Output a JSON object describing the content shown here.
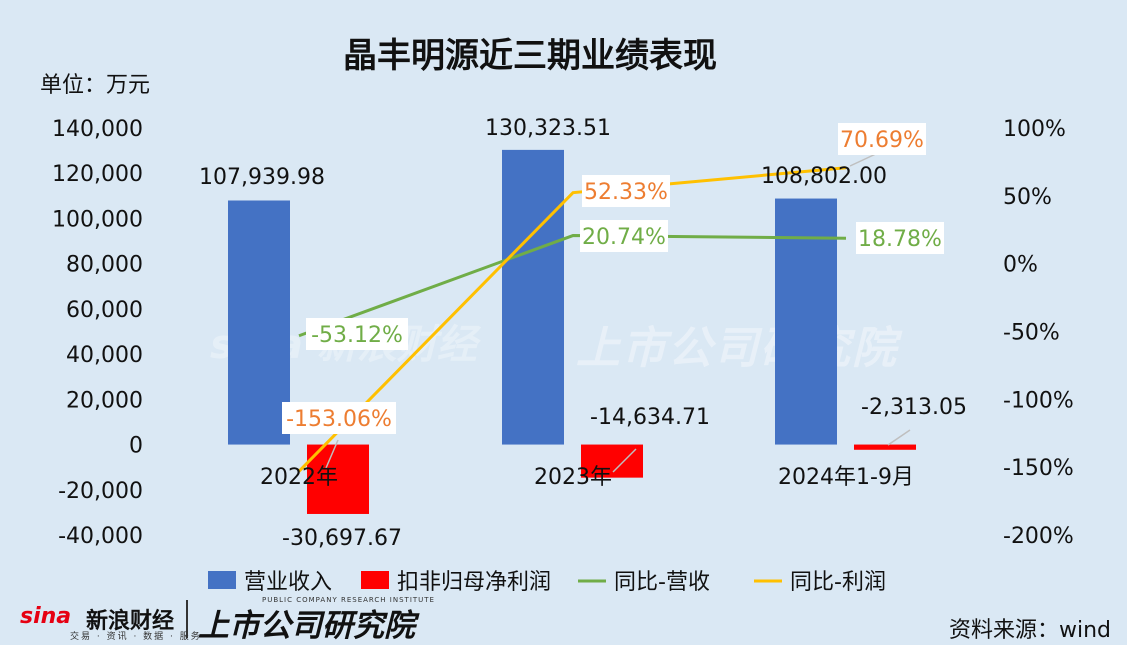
{
  "title": "晶丰明源近三期业绩表现",
  "unit": "单位：万元",
  "source": "资料来源：wind",
  "brand": {
    "sina": "sina",
    "sina_cn": "新浪财经",
    "sina_sub": "交易 · 资讯 · 数据 · 服务",
    "publication": "上市公司研究院",
    "publication_en": "PUBLIC COMPANY RESEARCH INSTITUTE"
  },
  "colors": {
    "revenue": "#4472c4",
    "profit": "#ff0000",
    "revenue_yoy": "#70ad47",
    "profit_yoy": "#ffc000",
    "profit_yoy_label": "#ed7d31"
  },
  "chart_data": {
    "type": "bar",
    "title": "晶丰明源近三期业绩表现",
    "ylabel": "单位：万元",
    "categories": [
      "2022年",
      "2023年",
      "2024年1-9月"
    ],
    "ylim": [
      -40000,
      140000
    ],
    "y_ticks": [
      "140,000",
      "120,000",
      "100,000",
      "80,000",
      "60,000",
      "40,000",
      "20,000",
      "0",
      "-20,000",
      "-40,000"
    ],
    "y2lim": [
      -200,
      100
    ],
    "y2_ticks": [
      "100%",
      "50%",
      "0%",
      "-50%",
      "-100%",
      "-150%",
      "-200%"
    ],
    "series": [
      {
        "name": "营业收入",
        "type": "bar",
        "axis": "left",
        "values": [
          107939.98,
          130323.51,
          108802.0
        ],
        "labels": [
          "107,939.98",
          "130,323.51",
          "108,802.00"
        ]
      },
      {
        "name": "扣非归母净利润",
        "type": "bar",
        "axis": "left",
        "values": [
          -30697.67,
          -14634.71,
          -2313.05
        ],
        "labels": [
          "-30,697.67",
          "-14,634.71",
          "-2,313.05"
        ]
      },
      {
        "name": "同比-营收",
        "type": "line",
        "axis": "right",
        "values": [
          -53.12,
          20.74,
          18.78
        ],
        "labels": [
          "-53.12%",
          "20.74%",
          "18.78%"
        ]
      },
      {
        "name": "同比-利润",
        "type": "line",
        "axis": "right",
        "values": [
          -153.06,
          52.33,
          70.69
        ],
        "labels": [
          "-153.06%",
          "52.33%",
          "70.69%"
        ]
      }
    ],
    "legend": "bottom",
    "grid": false
  }
}
